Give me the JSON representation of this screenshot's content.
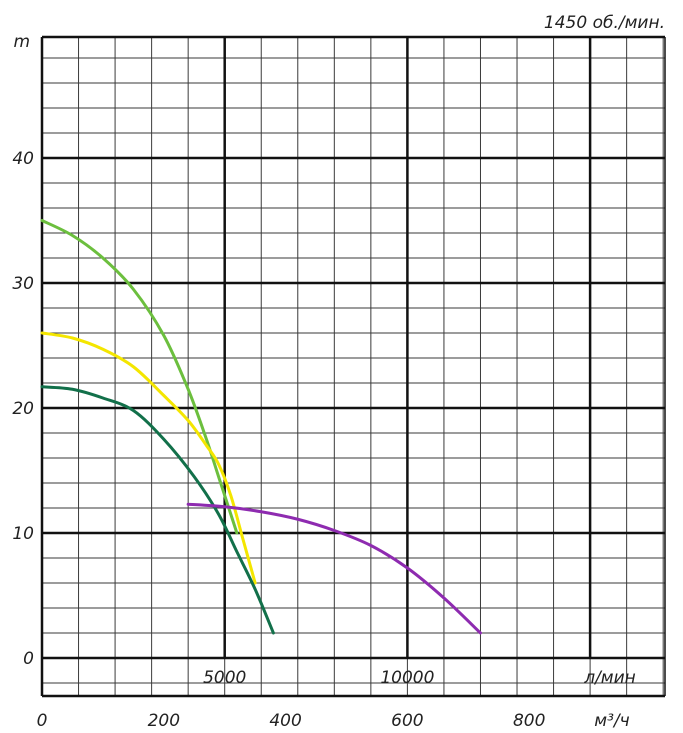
{
  "chart_data": {
    "type": "line",
    "speed_label": "1450 об./мин.",
    "ylabel": "m",
    "ylim": [
      -2,
      50
    ],
    "y_ticks": [
      0,
      10,
      20,
      30,
      40
    ],
    "y_tick_labels": [
      "0",
      "10",
      "20",
      "30",
      "40"
    ],
    "x_flow_lpm_ticks": [
      5000,
      10000
    ],
    "x_flow_lpm_tick_labels": [
      "5000",
      "10000"
    ],
    "x_flow_lpm_label": "л/мин",
    "xlim_m3h": [
      0,
      1000
    ],
    "x_m3h_ticks": [
      0,
      200,
      400,
      600,
      800
    ],
    "x_m3h_tick_labels": [
      "0",
      "200",
      "400",
      "600",
      "800"
    ],
    "x_m3h_label": "м³/ч",
    "grid": true,
    "colors": {
      "light_green": "#6cbf3e",
      "yellow": "#f4e600",
      "dark_green": "#12704a",
      "purple": "#8e2bb0",
      "grid": "#3a3a3a",
      "axis": "#111111"
    },
    "series": [
      {
        "color_key": "light_green",
        "x": [
          0,
          50,
          100,
          150,
          200,
          240,
          270,
          290,
          310,
          320
        ],
        "y": [
          35,
          33.8,
          32,
          29.5,
          25.8,
          21.5,
          17.5,
          14.5,
          11.5,
          10
        ]
      },
      {
        "color_key": "yellow",
        "x": [
          0,
          50,
          100,
          150,
          200,
          240,
          270,
          290,
          310,
          330,
          350
        ],
        "y": [
          26,
          25.6,
          24.7,
          23.3,
          21,
          19,
          17,
          15.5,
          13,
          9.5,
          6
        ]
      },
      {
        "color_key": "dark_green",
        "x": [
          0,
          50,
          100,
          150,
          200,
          250,
          290,
          320,
          350,
          380
        ],
        "y": [
          21.7,
          21.5,
          20.8,
          19.8,
          17.5,
          14.5,
          11.5,
          8.5,
          5.5,
          2
        ]
      },
      {
        "color_key": "purple",
        "x": [
          240,
          300,
          360,
          420,
          480,
          540,
          600,
          660,
          720
        ],
        "y": [
          12.3,
          12.1,
          11.7,
          11.1,
          10.2,
          9,
          7.2,
          4.8,
          2
        ]
      }
    ]
  }
}
